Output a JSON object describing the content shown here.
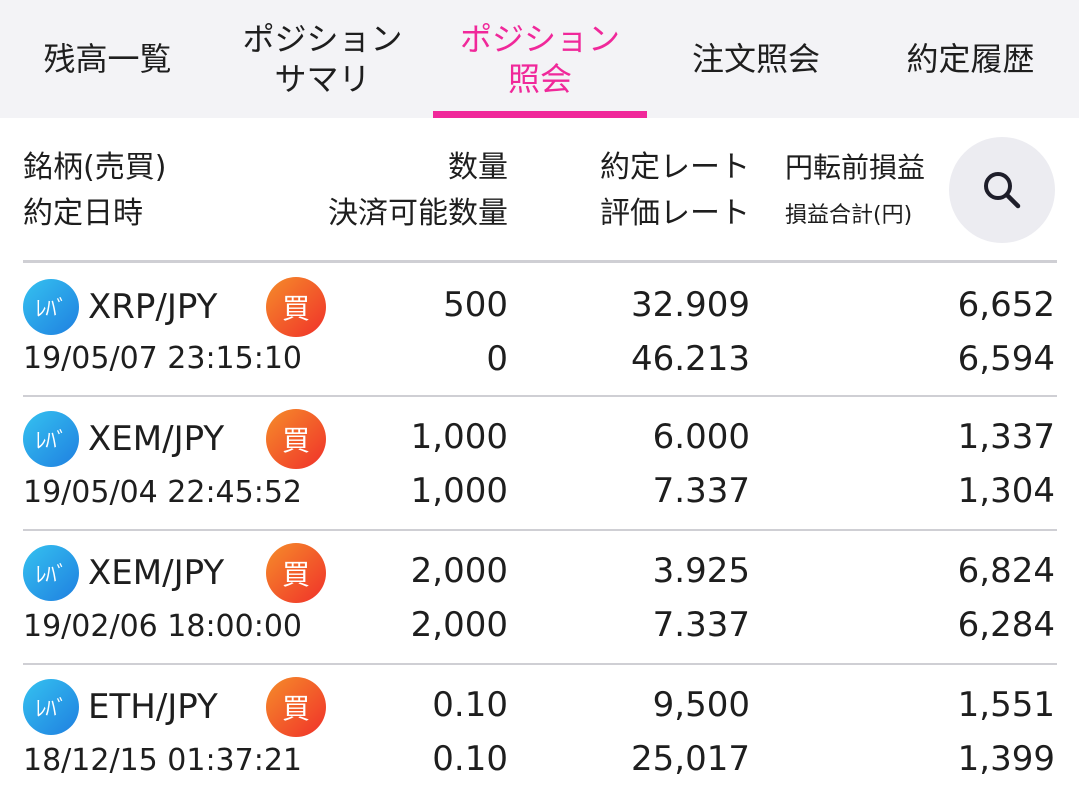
{
  "tabs": [
    {
      "label": "残高一覧",
      "active": false
    },
    {
      "label": "ポジション\nサマリ",
      "active": false
    },
    {
      "label": "ポジション\n照会",
      "active": true
    },
    {
      "label": "注文照会",
      "active": false
    },
    {
      "label": "約定履歴",
      "active": false
    }
  ],
  "header": {
    "symbol_label": "銘柄(売買)",
    "date_label": "約定日時",
    "qty_label": "数量",
    "settleable_qty_label": "決済可能数量",
    "rate_label": "約定レート",
    "eval_rate_label": "評価レート",
    "pnl_label": "円転前損益",
    "pnl_total_label": "損益合計(円)"
  },
  "colors": {
    "accent": "#f0289a",
    "leverage_badge": "#1f7fe0",
    "buy_badge": "#f0302a"
  },
  "rows": [
    {
      "badge": "ﾚﾊﾞ",
      "pair": "XRP/JPY",
      "side": "買",
      "date": "19/05/07 23:15:10",
      "qty": "500",
      "settleable": "0",
      "rate": "32.909",
      "eval_rate": "46.213",
      "pnl": "6,652",
      "pnl_total": "6,594"
    },
    {
      "badge": "ﾚﾊﾞ",
      "pair": "XEM/JPY",
      "side": "買",
      "date": "19/05/04 22:45:52",
      "qty": "1,000",
      "settleable": "1,000",
      "rate": "6.000",
      "eval_rate": "7.337",
      "pnl": "1,337",
      "pnl_total": "1,304"
    },
    {
      "badge": "ﾚﾊﾞ",
      "pair": "XEM/JPY",
      "side": "買",
      "date": "19/02/06 18:00:00",
      "qty": "2,000",
      "settleable": "2,000",
      "rate": "3.925",
      "eval_rate": "7.337",
      "pnl": "6,824",
      "pnl_total": "6,284"
    },
    {
      "badge": "ﾚﾊﾞ",
      "pair": "ETH/JPY",
      "side": "買",
      "date": "18/12/15 01:37:21",
      "qty": "0.10",
      "settleable": "0.10",
      "rate": "9,500",
      "eval_rate": "25,017",
      "pnl": "1,551",
      "pnl_total": "1,399"
    }
  ],
  "icons": {
    "search": "search-icon"
  }
}
